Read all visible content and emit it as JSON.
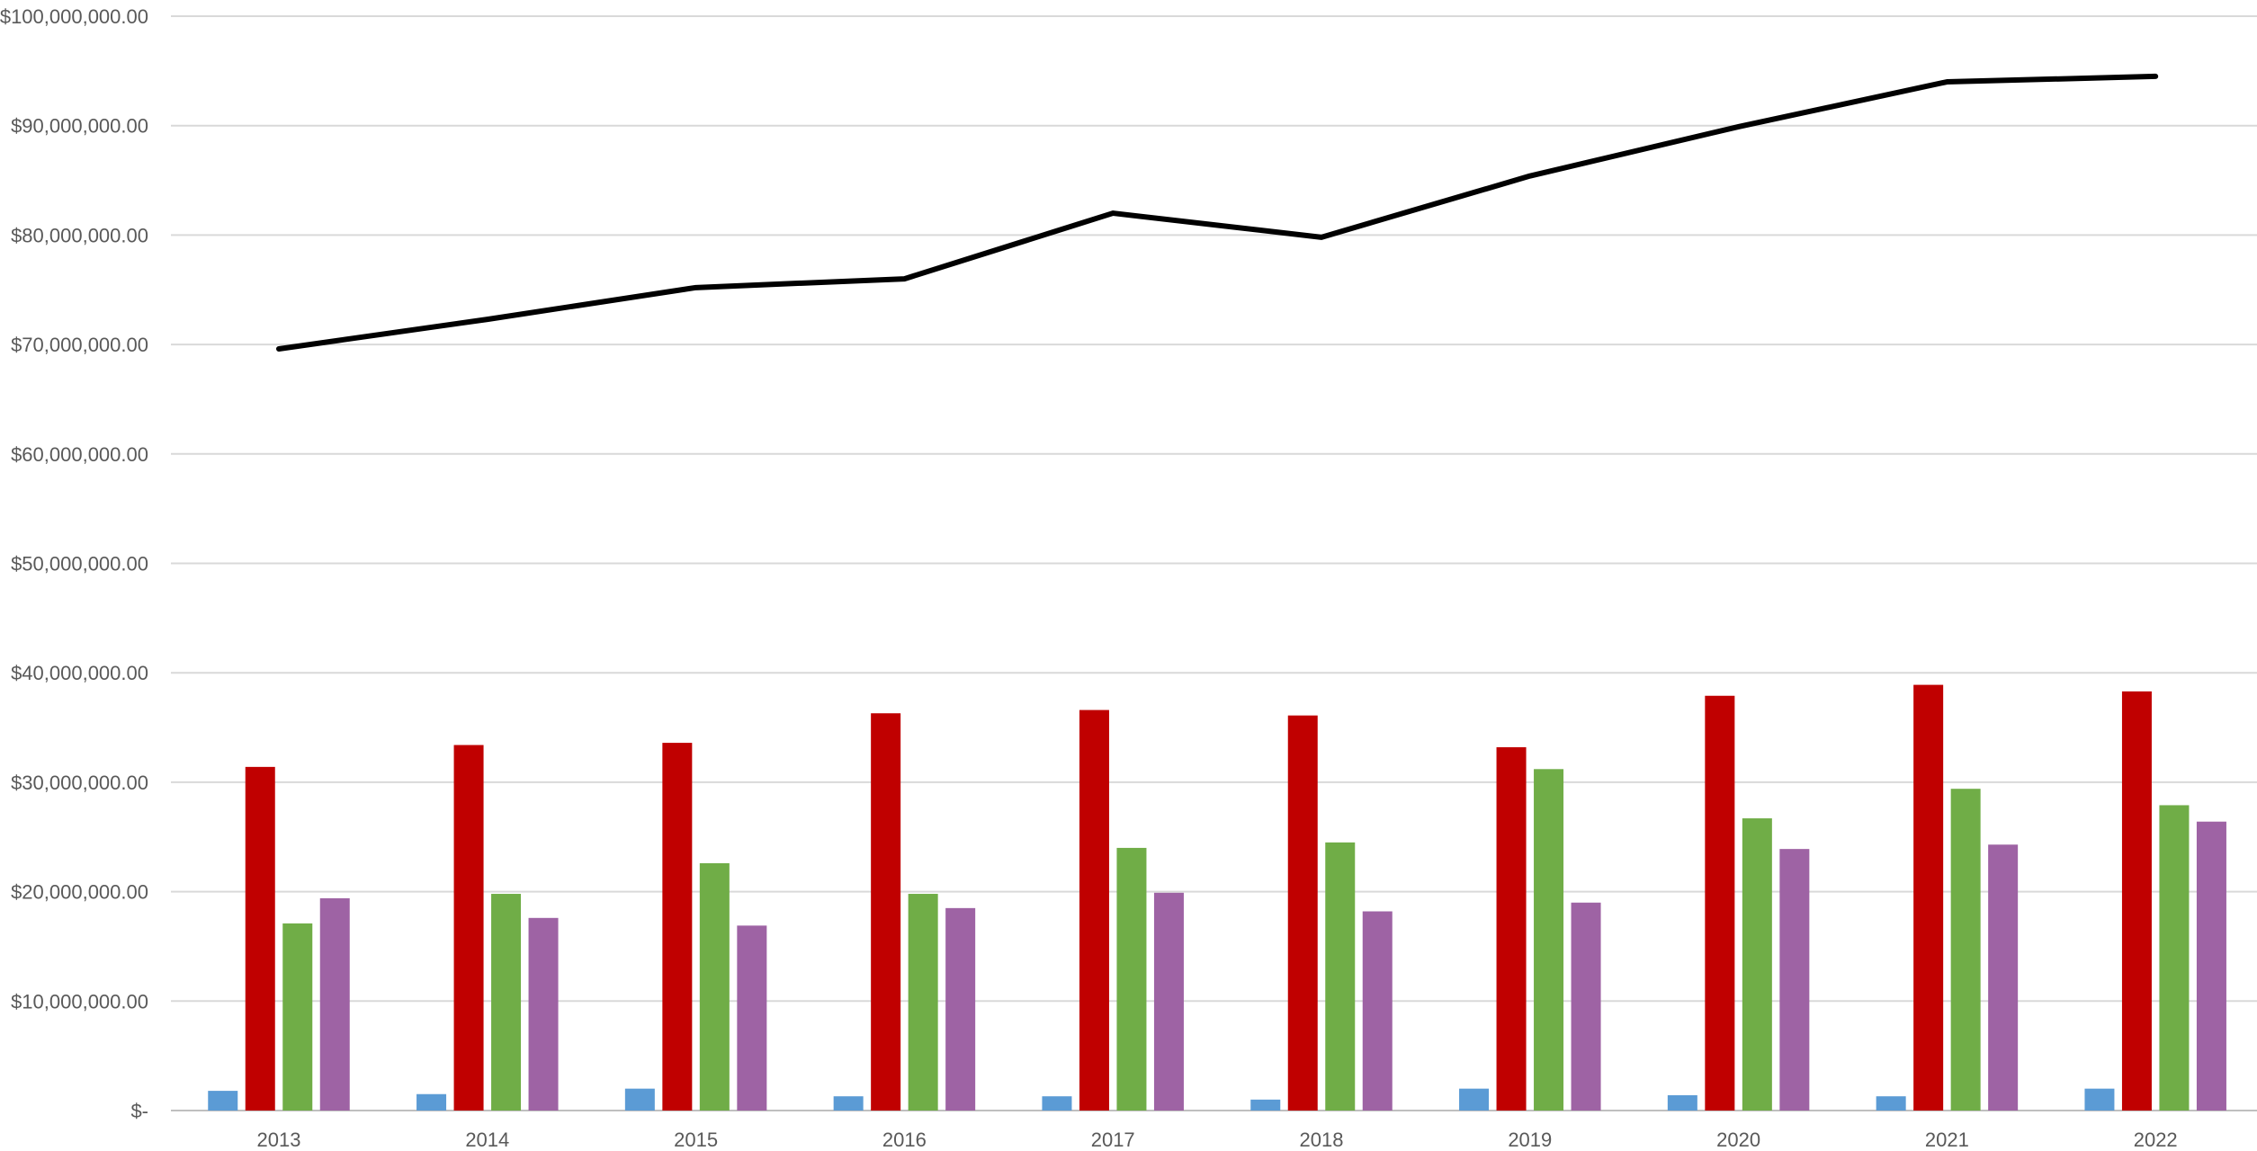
{
  "chart_data": {
    "type": "bar",
    "title": "",
    "xlabel": "",
    "ylabel": "",
    "categories": [
      "2013",
      "2014",
      "2015",
      "2016",
      "2017",
      "2018",
      "2019",
      "2020",
      "2021",
      "2022"
    ],
    "y_tick_labels": [
      "$-",
      "$10,000,000.00",
      "$20,000,000.00",
      "$30,000,000.00",
      "$40,000,000.00",
      "$50,000,000.00",
      "$60,000,000.00",
      "$70,000,000.00",
      "$80,000,000.00",
      "$90,000,000.00",
      "$100,000,000.00"
    ],
    "ylim": [
      0,
      100000000
    ],
    "grid": true,
    "legend": "none",
    "series": [
      {
        "type": "bar",
        "color": "#5b9bd5",
        "values": [
          1800000,
          1500000,
          2000000,
          1300000,
          1300000,
          1000000,
          2000000,
          1400000,
          1300000,
          2000000
        ]
      },
      {
        "type": "bar",
        "color": "#c00000",
        "values": [
          31400000,
          33400000,
          33600000,
          36300000,
          36600000,
          36100000,
          33200000,
          37900000,
          38900000,
          38300000
        ]
      },
      {
        "type": "bar",
        "color": "#70ad47",
        "values": [
          17100000,
          19800000,
          22600000,
          19800000,
          24000000,
          24500000,
          31200000,
          26700000,
          29400000,
          27900000
        ]
      },
      {
        "type": "bar",
        "color": "#9e63a4",
        "values": [
          19400000,
          17600000,
          16900000,
          18500000,
          19900000,
          18200000,
          19000000,
          23900000,
          24300000,
          26400000
        ]
      },
      {
        "type": "line",
        "color": "#000000",
        "values": [
          69600000,
          72300000,
          75200000,
          76000000,
          82000000,
          79800000,
          85400000,
          89900000,
          94000000,
          94500000
        ]
      }
    ]
  }
}
